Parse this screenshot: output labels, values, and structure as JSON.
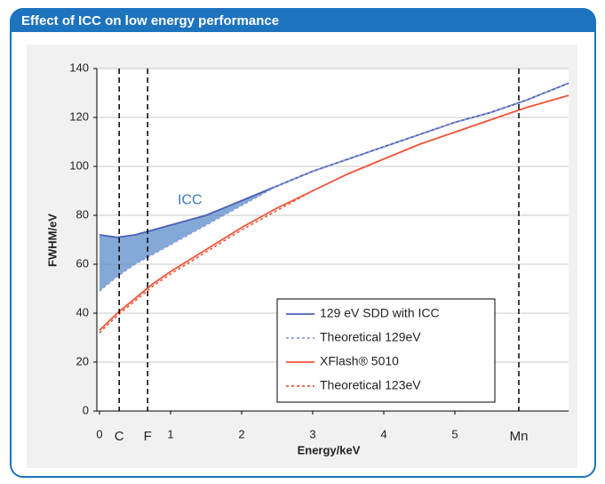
{
  "header": {
    "title": "Effect of ICC on low energy performance"
  },
  "chart_data": {
    "type": "line",
    "xlabel": "Energy/keV",
    "ylabel": "FWHM/eV",
    "xlim": [
      0,
      6.6
    ],
    "ylim": [
      0,
      140
    ],
    "xticks": [
      0,
      1,
      2,
      3,
      4,
      5
    ],
    "yticks": [
      0,
      20,
      40,
      60,
      80,
      100,
      120,
      140
    ],
    "grid": true,
    "legend": "lower right",
    "markers": [
      {
        "label": "C",
        "value": 0.277
      },
      {
        "label": "F",
        "value": 0.677
      },
      {
        "label": "Mn",
        "value": 5.9
      }
    ],
    "annotations": [
      {
        "text": "ICC",
        "x": 1.1,
        "y": 86
      }
    ],
    "x": [
      0,
      0.25,
      0.5,
      0.75,
      1,
      1.5,
      2,
      2.5,
      3,
      3.5,
      4,
      4.5,
      5,
      5.5,
      6,
      6.6
    ],
    "series": [
      {
        "name": "129 eV SDD with ICC",
        "color": "#4a5fb5",
        "style": "solid",
        "values": [
          72,
          71,
          72,
          74,
          76,
          80,
          86,
          92,
          98,
          103,
          108,
          113,
          118,
          122,
          127,
          134
        ]
      },
      {
        "name": "Theoretical 129eV",
        "color": "#8c9ad6",
        "style": "dotted",
        "values": [
          49,
          55,
          60,
          64,
          68,
          76,
          84,
          92,
          98,
          103,
          108,
          113,
          118,
          122,
          127,
          134
        ]
      },
      {
        "name": "XFlash® 5010",
        "color": "#f0553a",
        "style": "solid",
        "values": [
          33,
          40,
          46,
          52,
          57,
          66,
          75,
          83,
          90,
          97,
          103,
          109,
          114,
          119,
          124,
          129
        ]
      },
      {
        "name": "Theoretical 123eV",
        "color": "#f0553a",
        "style": "dotted",
        "values": [
          32,
          39,
          45,
          51,
          56,
          65,
          74,
          82,
          90,
          97,
          103,
          109,
          114,
          119,
          124,
          129
        ]
      }
    ]
  }
}
